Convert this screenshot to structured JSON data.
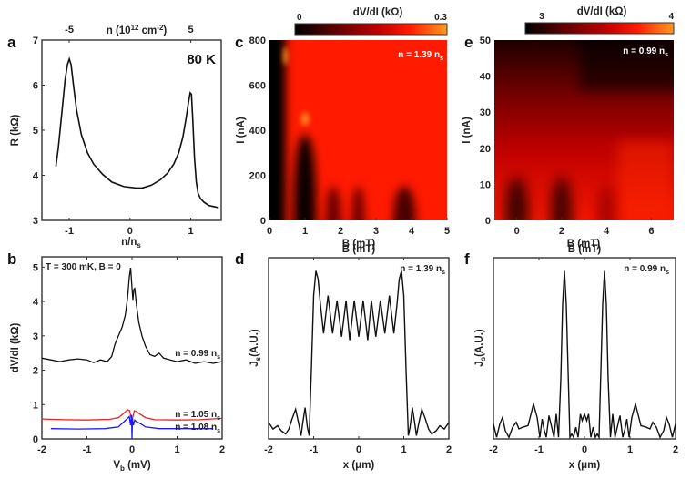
{
  "chart_data": [
    {
      "panel": "a",
      "type": "line",
      "xlabel": "n/n",
      "xlabel_sub": "s",
      "ylabel": "R (kΩ)",
      "xlim": [
        -1.45,
        1.5
      ],
      "ylim": [
        3,
        7
      ],
      "xticks": [
        -1,
        0,
        1
      ],
      "yticks": [
        3,
        4,
        5,
        6,
        7
      ],
      "top_axis": {
        "label": "n (10",
        "label_sup": "12",
        "label_mid": " cm",
        "label_sup2": "-2",
        "label_end": ")",
        "ticks": [
          {
            "pos": -1,
            "label": "-5"
          },
          {
            "pos": 1,
            "label": "5"
          }
        ]
      },
      "annotation": "80 K",
      "series": [
        {
          "name": "R",
          "color": "#111111",
          "x": [
            -1.22,
            -1.18,
            -1.12,
            -1.07,
            -1.03,
            -1.0,
            -0.97,
            -0.93,
            -0.88,
            -0.8,
            -0.7,
            -0.6,
            -0.45,
            -0.3,
            -0.1,
            0.1,
            0.2,
            0.35,
            0.5,
            0.62,
            0.72,
            0.8,
            0.87,
            0.92,
            0.96,
            0.99,
            1.01,
            1.03,
            1.06,
            1.09,
            1.12,
            1.16,
            1.22,
            1.3,
            1.4,
            1.46
          ],
          "y": [
            4.2,
            4.6,
            5.4,
            6.1,
            6.45,
            6.58,
            6.45,
            6.0,
            5.45,
            4.9,
            4.5,
            4.25,
            4.02,
            3.85,
            3.75,
            3.72,
            3.72,
            3.78,
            3.9,
            4.05,
            4.25,
            4.5,
            4.85,
            5.25,
            5.6,
            5.83,
            5.8,
            5.3,
            4.4,
            3.85,
            3.6,
            3.48,
            3.4,
            3.33,
            3.3,
            3.28
          ]
        }
      ]
    },
    {
      "panel": "b",
      "type": "line",
      "xlabel": "V",
      "xlabel_sub": "b",
      "xlabel_end": " (mV)",
      "ylabel": "dV/dI (kΩ)",
      "xlim": [
        -2,
        2
      ],
      "ylim": [
        0,
        5.3
      ],
      "xticks": [
        -2,
        -1,
        0,
        1,
        2
      ],
      "yticks": [
        0,
        1,
        2,
        3,
        4,
        5
      ],
      "annotation": "T = 300 mK, B = 0",
      "series": [
        {
          "name": "n = 0.99 n_s",
          "label": "n = 0.99 n",
          "label_sub": "s",
          "color": "#111111",
          "x": [
            -2.0,
            -1.8,
            -1.6,
            -1.4,
            -1.2,
            -1.0,
            -0.85,
            -0.7,
            -0.55,
            -0.45,
            -0.38,
            -0.3,
            -0.22,
            -0.15,
            -0.1,
            -0.06,
            -0.03,
            0.0,
            0.02,
            0.04,
            0.06,
            0.1,
            0.15,
            0.22,
            0.3,
            0.4,
            0.5,
            0.6,
            0.7,
            0.85,
            1.0,
            1.2,
            1.4,
            1.6,
            1.8,
            2.0
          ],
          "y": [
            2.35,
            2.3,
            2.25,
            2.3,
            2.33,
            2.3,
            2.22,
            2.3,
            2.25,
            2.4,
            2.75,
            3.0,
            3.25,
            3.6,
            4.1,
            4.7,
            4.98,
            4.4,
            4.05,
            4.35,
            4.38,
            3.9,
            3.4,
            3.0,
            2.7,
            2.45,
            2.4,
            2.5,
            2.35,
            2.3,
            2.25,
            2.3,
            2.2,
            2.25,
            2.2,
            2.25
          ]
        },
        {
          "name": "n = 1.05 n_s",
          "label": "n = 1.05 n",
          "label_sub": "s",
          "color": "#ee2222",
          "x": [
            -2.0,
            -1.5,
            -1.0,
            -0.5,
            -0.3,
            -0.18,
            -0.1,
            -0.05,
            -0.02,
            0.0,
            0.02,
            0.05,
            0.1,
            0.18,
            0.3,
            0.5,
            1.0,
            1.5,
            2.0
          ],
          "y": [
            0.58,
            0.56,
            0.55,
            0.57,
            0.62,
            0.75,
            0.85,
            0.82,
            0.6,
            0.55,
            0.65,
            0.82,
            0.8,
            0.72,
            0.62,
            0.56,
            0.55,
            0.56,
            0.6
          ]
        },
        {
          "name": "n = 1.08 n_s",
          "label": "n = 1.08 n",
          "label_sub": "s",
          "color": "#1a1aee",
          "x": [
            -1.8,
            -1.2,
            -0.6,
            -0.3,
            -0.18,
            -0.1,
            -0.06,
            -0.03,
            -0.01,
            0.0,
            0.01,
            0.03,
            0.06,
            0.1,
            0.18,
            0.3,
            0.6,
            1.2,
            1.8
          ],
          "y": [
            0.3,
            0.29,
            0.3,
            0.35,
            0.5,
            0.6,
            0.65,
            0.4,
            0.7,
            0.0,
            0.6,
            0.4,
            0.55,
            0.5,
            0.45,
            0.35,
            0.3,
            0.3,
            0.3
          ]
        }
      ]
    },
    {
      "panel": "c",
      "type": "heatmap",
      "xlabel": "B (mT)",
      "ylabel": "I (nA)",
      "xlim": [
        0,
        5
      ],
      "ylim": [
        0,
        800
      ],
      "xticks": [
        0,
        1,
        2,
        3,
        4,
        5
      ],
      "yticks": [
        0,
        200,
        400,
        600,
        800
      ],
      "annotation": "n = 1.39 n",
      "annotation_sub": "s",
      "colorbar": {
        "label": "dV/dI (kΩ)",
        "min": 0,
        "max": 0.3,
        "min_label": "0",
        "max_label": "0.3",
        "colormap": [
          "#000000",
          "#5a0000",
          "#c00000",
          "#ff1a00",
          "#ff8c1a"
        ]
      },
      "background_value": 0.75,
      "features": [
        {
          "kind": "black_band",
          "x": [
            0,
            0.45
          ],
          "ymax": 800,
          "value": 0.0
        },
        {
          "kind": "lobe",
          "xc": 1.0,
          "w": 0.32,
          "ymax": 380,
          "value": 0.02
        },
        {
          "kind": "lobe",
          "xc": 1.8,
          "w": 0.22,
          "ymax": 150,
          "value": 0.3
        },
        {
          "kind": "lobe",
          "xc": 2.5,
          "w": 0.18,
          "ymax": 150,
          "value": 0.3
        },
        {
          "kind": "lobe",
          "xc": 3.8,
          "w": 0.32,
          "ymax": 150,
          "value": 0.2
        },
        {
          "kind": "hot",
          "xc": 0.45,
          "yc": 730,
          "w": 0.06,
          "h": 80,
          "value": 1.0
        },
        {
          "kind": "hot",
          "xc": 1.0,
          "yc": 450,
          "w": 0.12,
          "h": 60,
          "value": 0.95
        }
      ]
    },
    {
      "panel": "d",
      "type": "line",
      "xlabel": "x (μm)",
      "ylabel": "J",
      "ylabel_sub": "s",
      "ylabel_end": "(A.U.)",
      "xlim": [
        -2,
        2
      ],
      "xticks": [
        -2,
        -1,
        0,
        1,
        2
      ],
      "top_label": "B (mT)",
      "annotation": "n = 1.39 n",
      "annotation_sub": "s",
      "series": [
        {
          "name": "Js",
          "color": "#111111",
          "x": [
            -2.0,
            -1.9,
            -1.8,
            -1.72,
            -1.62,
            -1.55,
            -1.48,
            -1.4,
            -1.33,
            -1.28,
            -1.24,
            -1.19,
            -1.14,
            -1.1,
            -1.05,
            -1.0,
            -0.95,
            -0.9,
            -0.85,
            -0.78,
            -0.68,
            -0.58,
            -0.48,
            -0.38,
            -0.28,
            -0.2,
            -0.1,
            0.0,
            0.1,
            0.2,
            0.28,
            0.38,
            0.48,
            0.58,
            0.68,
            0.78,
            0.85,
            0.9,
            0.95,
            1.0,
            1.05,
            1.1,
            1.14,
            1.19,
            1.24,
            1.28,
            1.33,
            1.4,
            1.48,
            1.55,
            1.62,
            1.72,
            1.8,
            1.9,
            2.0
          ],
          "y": [
            0.08,
            0.04,
            0.06,
            0.03,
            0.01,
            0.04,
            0.1,
            0.16,
            0.07,
            0.0,
            0.08,
            0.17,
            0.05,
            0.0,
            0.4,
            0.85,
            1.0,
            0.95,
            0.8,
            0.62,
            0.85,
            0.62,
            0.82,
            0.6,
            0.82,
            0.58,
            0.82,
            0.6,
            0.82,
            0.58,
            0.82,
            0.6,
            0.82,
            0.62,
            0.85,
            0.62,
            0.8,
            0.95,
            1.0,
            0.85,
            0.4,
            0.0,
            0.05,
            0.17,
            0.08,
            0.0,
            0.07,
            0.16,
            0.1,
            0.04,
            0.01,
            0.03,
            0.06,
            0.04,
            0.08
          ]
        }
      ]
    },
    {
      "panel": "e",
      "type": "heatmap",
      "xlabel": "B (mT)",
      "ylabel": "I (nA)",
      "xlim": [
        -1,
        7
      ],
      "ylim": [
        0,
        50
      ],
      "xticks": [
        0,
        2,
        4,
        6
      ],
      "yticks": [
        0,
        10,
        20,
        30,
        40,
        50
      ],
      "annotation": "n = 0.99 n",
      "annotation_sub": "s",
      "colorbar": {
        "label": "dV/dI (kΩ)",
        "min": 3,
        "max": 4,
        "min_label": "3",
        "max_label": "4",
        "colormap": [
          "#000000",
          "#5a0000",
          "#c00000",
          "#ff1a00",
          "#ff8c1a"
        ]
      },
      "features": [
        {
          "kind": "vertical_gradient",
          "bottom_value": 0.72,
          "top_value": 0.08
        },
        {
          "kind": "lobe",
          "xc": 0.0,
          "w": 0.55,
          "ymax": 12,
          "value": 0.1
        },
        {
          "kind": "lobe",
          "xc": 2.0,
          "w": 0.5,
          "ymax": 12,
          "value": 0.12
        },
        {
          "kind": "lobe",
          "xc": 4.0,
          "w": 0.45,
          "ymax": 10,
          "value": 0.45
        }
      ]
    },
    {
      "panel": "f",
      "type": "line",
      "xlabel": "x (μm)",
      "ylabel": "J",
      "ylabel_sub": "s",
      "ylabel_end": "(A.U.)",
      "xlim": [
        -2,
        2
      ],
      "xticks": [
        -2,
        -1,
        0,
        1,
        2
      ],
      "top_label": "B (mT)",
      "annotation": "n = 0.99 n",
      "annotation_sub": "s",
      "series": [
        {
          "name": "Js",
          "color": "#111111",
          "x": [
            -2.0,
            -1.93,
            -1.86,
            -1.8,
            -1.74,
            -1.66,
            -1.58,
            -1.5,
            -1.44,
            -1.36,
            -1.24,
            -1.12,
            -1.04,
            -0.98,
            -0.93,
            -0.89,
            -0.84,
            -0.78,
            -0.72,
            -0.67,
            -0.62,
            -0.57,
            -0.52,
            -0.48,
            -0.44,
            -0.4,
            -0.36,
            -0.32,
            -0.28,
            -0.24,
            -0.19,
            -0.14,
            -0.09,
            -0.05,
            0.0,
            0.05,
            0.09,
            0.14,
            0.19,
            0.24,
            0.28,
            0.32,
            0.36,
            0.4,
            0.44,
            0.48,
            0.52,
            0.57,
            0.62,
            0.67,
            0.72,
            0.78,
            0.84,
            0.89,
            0.93,
            0.98,
            1.04,
            1.12,
            1.24,
            1.36,
            1.44,
            1.5,
            1.58,
            1.66,
            1.74,
            1.8,
            1.86,
            1.93,
            2.0
          ],
          "y": [
            0.08,
            0.0,
            0.08,
            0.12,
            0.04,
            0.0,
            0.06,
            0.09,
            0.05,
            0.06,
            0.07,
            0.2,
            0.12,
            0.0,
            0.11,
            0.05,
            0.0,
            0.13,
            0.06,
            0.0,
            0.14,
            0.0,
            0.35,
            0.8,
            1.0,
            0.8,
            0.4,
            0.0,
            0.02,
            0.0,
            0.06,
            0.0,
            0.14,
            0.1,
            0.14,
            0.1,
            0.14,
            0.0,
            0.06,
            0.0,
            0.02,
            0.0,
            0.4,
            0.8,
            1.0,
            0.8,
            0.35,
            0.0,
            0.14,
            0.0,
            0.06,
            0.13,
            0.0,
            0.05,
            0.11,
            0.0,
            0.12,
            0.2,
            0.07,
            0.06,
            0.05,
            0.09,
            0.06,
            0.0,
            0.04,
            0.12,
            0.08,
            0.0,
            0.08
          ]
        }
      ]
    }
  ]
}
